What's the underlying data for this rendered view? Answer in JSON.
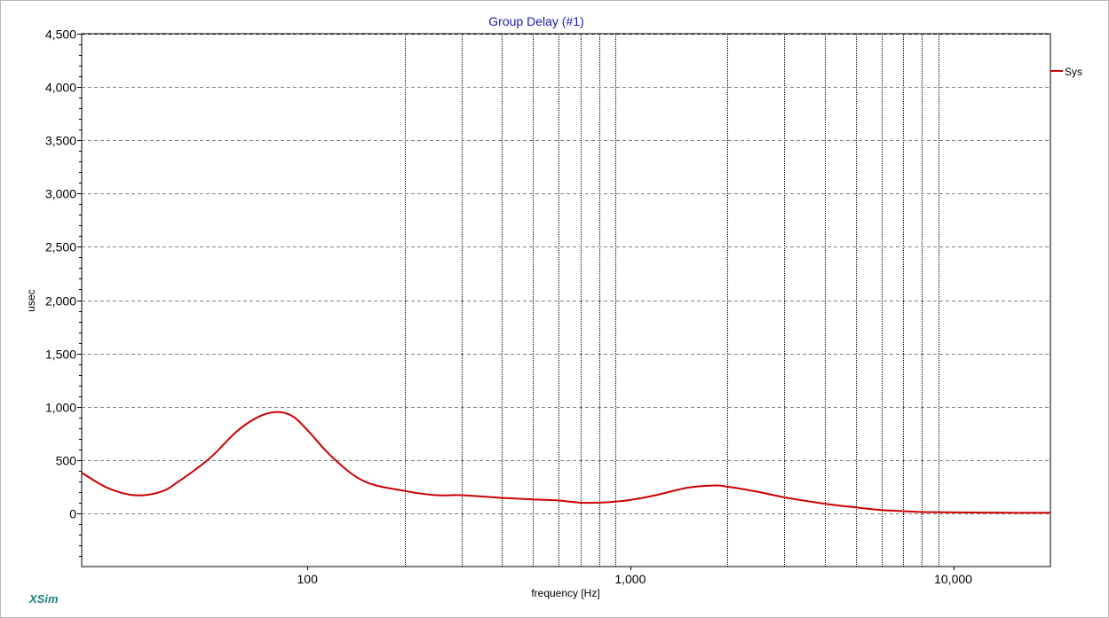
{
  "chart_data": {
    "type": "line",
    "title": "Group Delay (#1)",
    "xlabel": "frequency [Hz]",
    "ylabel": "usec",
    "x_scale": "log",
    "xlim": [
      20,
      20000
    ],
    "ylim": [
      -500,
      4500
    ],
    "y_ticks": [
      0,
      500,
      1000,
      1500,
      2000,
      2500,
      3000,
      3500,
      4000,
      4500
    ],
    "y_tick_labels": [
      "0",
      "500",
      "1,000",
      "1,500",
      "2,000",
      "2,500",
      "3,000",
      "3,500",
      "4,000",
      "4,500"
    ],
    "x_tick_labels": [
      {
        "value": 100,
        "label": "100"
      },
      {
        "value": 1000,
        "label": "1,000"
      },
      {
        "value": 10000,
        "label": "10,000"
      }
    ],
    "vertical_gridlines": [
      200,
      300,
      400,
      500,
      600,
      700,
      800,
      900,
      2000,
      3000,
      4000,
      5000,
      6000,
      7000,
      8000,
      9000
    ],
    "horizontal_grid": "dashed",
    "legend_position": "top-right",
    "series": [
      {
        "name": "Sys",
        "color": "#cc0000",
        "points": [
          [
            20,
            380
          ],
          [
            24,
            240
          ],
          [
            29,
            170
          ],
          [
            35,
            200
          ],
          [
            40,
            300
          ],
          [
            50,
            520
          ],
          [
            60,
            760
          ],
          [
            70,
            900
          ],
          [
            80,
            950
          ],
          [
            90,
            910
          ],
          [
            100,
            780
          ],
          [
            120,
            520
          ],
          [
            150,
            300
          ],
          [
            200,
            210
          ],
          [
            250,
            170
          ],
          [
            300,
            170
          ],
          [
            400,
            145
          ],
          [
            500,
            130
          ],
          [
            600,
            120
          ],
          [
            700,
            100
          ],
          [
            800,
            100
          ],
          [
            900,
            110
          ],
          [
            1000,
            125
          ],
          [
            1200,
            170
          ],
          [
            1500,
            240
          ],
          [
            1800,
            260
          ],
          [
            2000,
            250
          ],
          [
            2500,
            200
          ],
          [
            3000,
            150
          ],
          [
            4000,
            90
          ],
          [
            5000,
            55
          ],
          [
            6000,
            30
          ],
          [
            7000,
            20
          ],
          [
            8000,
            12
          ],
          [
            10000,
            8
          ],
          [
            15000,
            5
          ],
          [
            20000,
            5
          ]
        ]
      }
    ]
  },
  "brand": "XSim"
}
